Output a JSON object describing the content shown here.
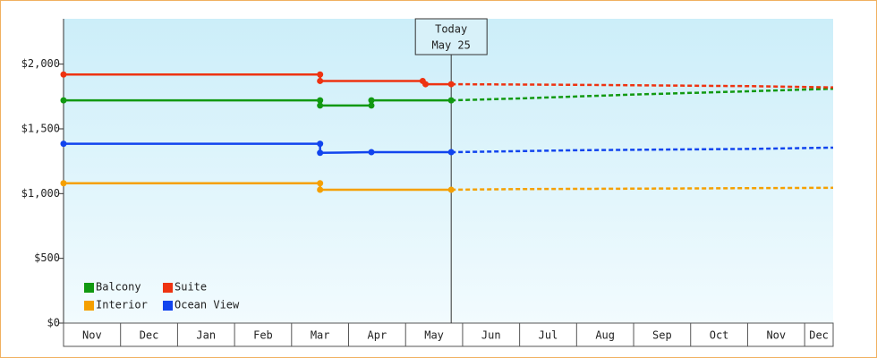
{
  "chart_data": {
    "type": "line",
    "categories": [
      "Nov",
      "Dec",
      "Jan",
      "Feb",
      "Mar",
      "Apr",
      "May",
      "Jun",
      "Jul",
      "Aug",
      "Sep",
      "Oct",
      "Nov",
      "Dec"
    ],
    "xlim": [
      0,
      13.5
    ],
    "ylim": [
      0,
      2350
    ],
    "yticks": [
      {
        "value": 0,
        "label": "$0"
      },
      {
        "value": 500,
        "label": "$500"
      },
      {
        "value": 1000,
        "label": "$1,000"
      },
      {
        "value": 1500,
        "label": "$1,500"
      },
      {
        "value": 2000,
        "label": "$2,000"
      }
    ],
    "annotation": {
      "text": [
        "Today",
        "May 25"
      ],
      "x": 6.8
    },
    "series": [
      {
        "name": "Balcony",
        "color": "#119911",
        "x": [
          0,
          4.5,
          4.5,
          5.4,
          5.4,
          6.8
        ],
        "values": [
          1720,
          1720,
          1680,
          1680,
          1720,
          1720
        ],
        "forecast_x": [
          6.8,
          8,
          10,
          12,
          13.5
        ],
        "forecast_values": [
          1720,
          1735,
          1765,
          1790,
          1810
        ]
      },
      {
        "name": "Suite",
        "color": "#ee3311",
        "x": [
          0,
          4.5,
          4.5,
          6.3,
          6.35,
          6.8
        ],
        "values": [
          1920,
          1920,
          1870,
          1870,
          1845,
          1845
        ],
        "forecast_x": [
          6.8,
          9,
          12,
          13.5
        ],
        "forecast_values": [
          1845,
          1840,
          1830,
          1820
        ]
      },
      {
        "name": "Interior",
        "color": "#f5a000",
        "x": [
          0,
          4.5,
          4.5,
          6.8
        ],
        "values": [
          1080,
          1080,
          1030,
          1030
        ],
        "forecast_x": [
          6.8,
          8,
          11,
          13.5
        ],
        "forecast_values": [
          1030,
          1035,
          1040,
          1045
        ]
      },
      {
        "name": "Ocean View",
        "color": "#1144ee",
        "x": [
          0,
          4.5,
          4.5,
          5.4,
          6.8
        ],
        "values": [
          1385,
          1385,
          1315,
          1320,
          1320
        ],
        "forecast_x": [
          6.8,
          9,
          12,
          13.5
        ],
        "forecast_values": [
          1320,
          1335,
          1345,
          1355
        ]
      }
    ]
  }
}
